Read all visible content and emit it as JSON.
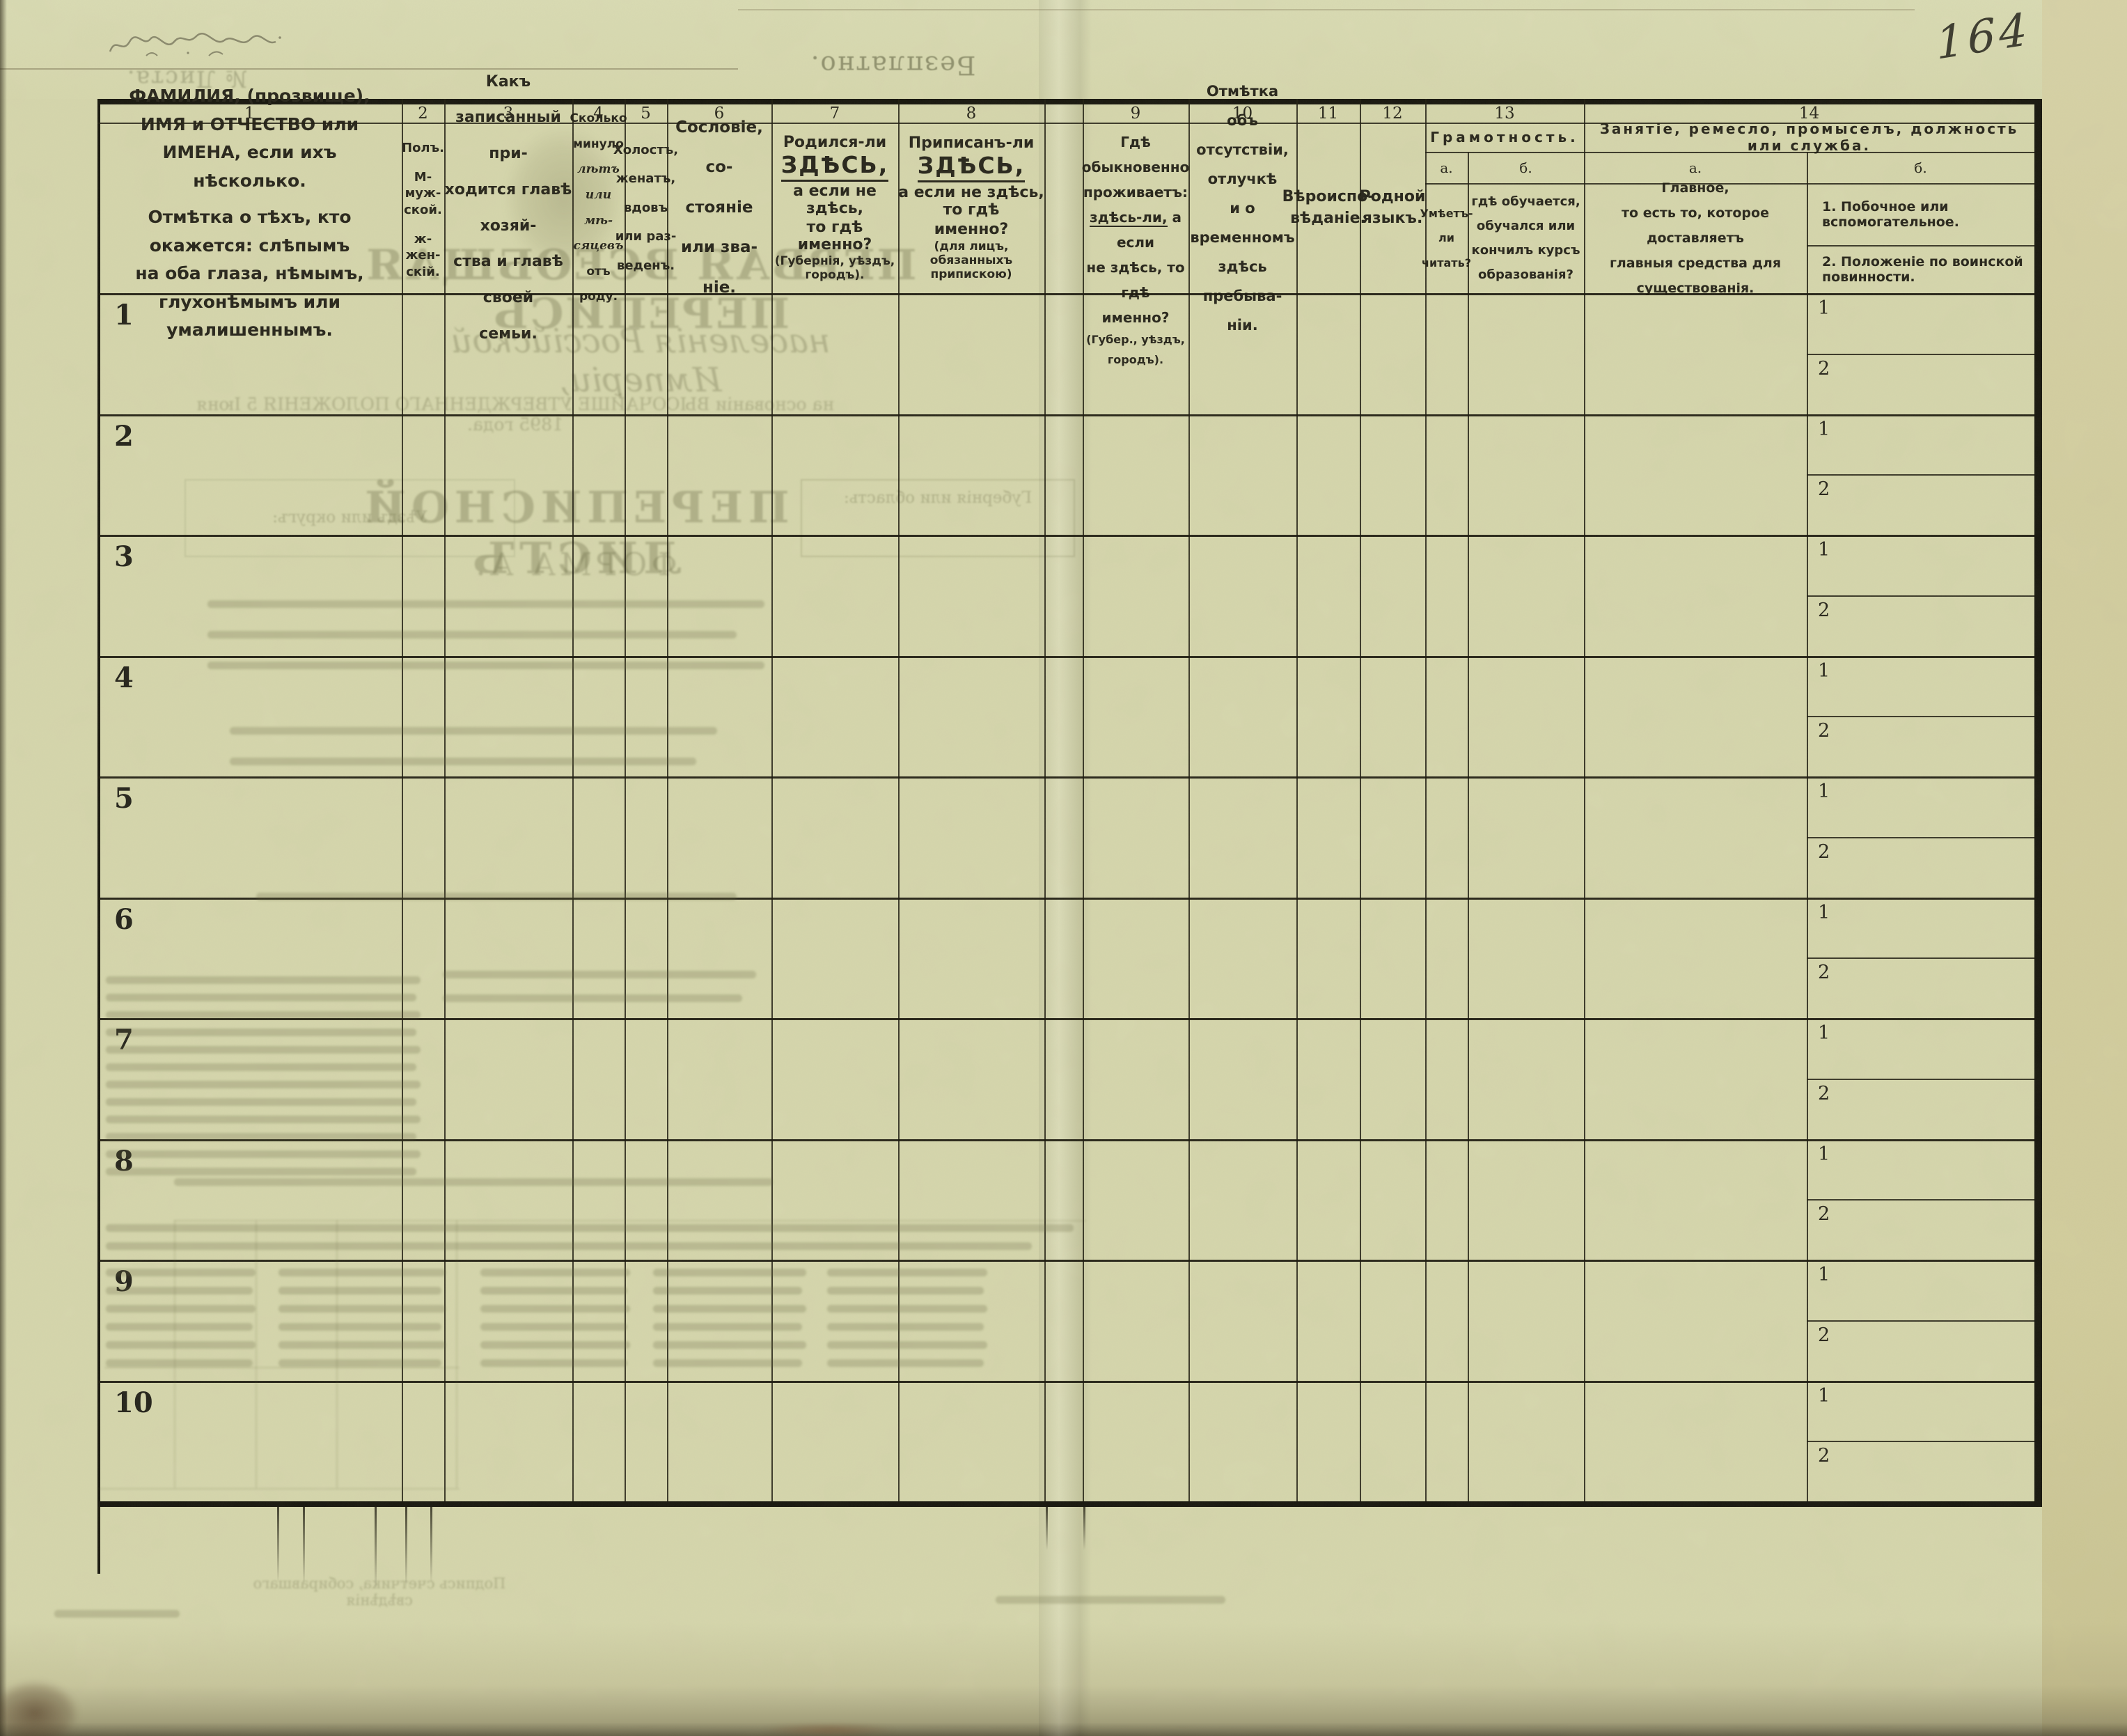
{
  "page": {
    "handwritten_number": "164",
    "stamp_free": "Безплатно.",
    "stamp_sheet": "№ Листа.",
    "paper_color": "#d6d7ad",
    "ink_color": "#26241a"
  },
  "header": {
    "col1": {
      "num": "1",
      "p1": "ФАМИЛИЯ, (прозвище), ИМЯ и ОТЧЕСТВО или\nИМЕНА, если ихъ нѣсколько.",
      "p2": "Отмѣтка о тѣхъ, кто окажется: слѣпымъ\nна оба глаза, нѣмымъ, глухонѣмымъ или\nумалишеннымъ."
    },
    "col2": {
      "num": "2",
      "title": "Полъ.",
      "male": "М-муж-\nской.",
      "female": "ж-жен-\nскій."
    },
    "col3": {
      "num": "3",
      "text": "Какъ записанный при-\nходится главѣ хозяй-\nства и главѣ своей\nсемьи."
    },
    "col4": {
      "num": "4",
      "lines": [
        "Сколько",
        "минуло",
        "лѣтъ",
        "или мѣ-",
        "сяцевъ",
        "отъ роду."
      ]
    },
    "col5": {
      "num": "5",
      "text": "Холостъ,\nженатъ,\nвдовъ\nили раз-\nведенъ."
    },
    "col6": {
      "num": "6",
      "text": "Сословіе, со-\nстояніе или зва-\nніе."
    },
    "col7": {
      "num": "7",
      "pre": "Родился-ли",
      "big": "ЗДѢСЬ,",
      "l2": "а если не здѣсь,",
      "l3": "то гдѣ именно?",
      "note": "(Губернія, уѣздъ, городъ)."
    },
    "col8": {
      "num": "8",
      "pre": "Приписанъ-ли",
      "big": "ЗДѢСЬ,",
      "l2": "а если не здѣсь, то гдѣ",
      "l3": "именно?",
      "note": "(для лицъ, обязанныхъ\nприпискою)"
    },
    "col9": {
      "num": "9",
      "l1": "Гдѣ обыкновенно\nпроживаетъ:",
      "u": "здѣсь-ли,",
      "l2": " а если",
      "l3": "не здѣсь, то гдѣ\nименно?",
      "note": "(Губер., уѣздъ, городъ)."
    },
    "col10": {
      "num": "10",
      "text": "Отмѣтка объ\nотсутствіи, отлучкѣ\nи о временномъ\nздѣсь пребыва-\nніи."
    },
    "col11": {
      "num": "11",
      "text": "Вѣроиспо-\nвѣданіе."
    },
    "col12": {
      "num": "12",
      "text": "Родной\nязыкъ."
    },
    "col13": {
      "num": "13",
      "title": "Грамотность.",
      "a_label": "а.",
      "b_label": "б.",
      "a_text": "Умѣетъ-\nли\nчитать?",
      "b_text": "гдѣ обучается,\nобучался или\nкончилъ курсъ\nобразованія?"
    },
    "col14": {
      "num": "14",
      "title": "Занятіе, ремесло, промыселъ, должность или служба.",
      "a_label": "а.",
      "b_label": "б.",
      "a_text": "Главное,\nто есть то, которое доставляетъ\nглавныя средства для существованія.",
      "b1": "1.  Побочное или вспомогательное.",
      "b2": "2.  Положеніе по воинской повинности."
    }
  },
  "body": {
    "row_numbers": [
      "1",
      "2",
      "3",
      "4",
      "5",
      "6",
      "7",
      "8",
      "9",
      "10"
    ],
    "subrow_labels": [
      "1",
      "2"
    ]
  },
  "bleed": {
    "title1": "ПЕРВАЯ ВСЕОБЩАЯ ПЕРЕПИСЬ",
    "title2": "населенія Россійской Имперіи,",
    "title3": "на основаніи ВЫСОЧАЙШЕ УТВЕРЖДЕННАГО ПОЛОЖЕНІЯ 5 Іюня 1895 года.",
    "sheet": "ПЕРЕПИСНОЙ ЛИСТЪ",
    "form": "ФОРМА А.",
    "gub": "Губернія или область:",
    "uezd": "Уѣздъ или округъ:",
    "signature": "Подпись счетчика, собиравшаго свѣдѣнія"
  }
}
